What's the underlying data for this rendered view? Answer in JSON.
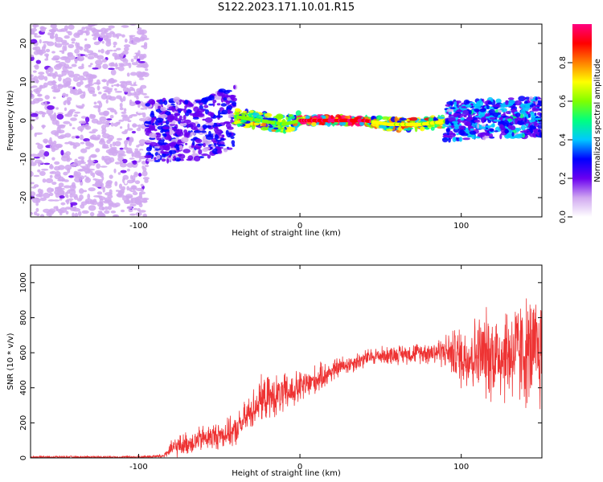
{
  "title": "S122.2023.171.10.01.R15",
  "chart_data": [
    {
      "type": "heatmap",
      "xlabel": "Height of straight line (km)",
      "ylabel": "Frequency (Hz)",
      "xlim": [
        -167,
        150
      ],
      "ylim": [
        -25,
        25
      ],
      "x_ticks": [
        -100,
        0,
        100
      ],
      "y_ticks": [
        -20,
        -10,
        0,
        10,
        20
      ],
      "grid": false,
      "colorbar": {
        "label": "Normalized spectral amplitude",
        "range": [
          0,
          1
        ],
        "ticks": [
          0.0,
          0.2,
          0.4,
          0.6,
          0.8
        ],
        "colors": [
          "#ffffff",
          "#d0a8f0",
          "#6a00f0",
          "#0000ff",
          "#00c8ff",
          "#00ff80",
          "#80ff00",
          "#ffff00",
          "#ff8000",
          "#ff0000",
          "#ff0080"
        ]
      },
      "regions": [
        {
          "x_range": [
            -167,
            -95
          ],
          "freq_half_width": 25,
          "amplitude": 0.12,
          "description_level": "scattered"
        },
        {
          "x_range": [
            -95,
            -40
          ],
          "freq_half_width": 8,
          "amplitude": 0.25
        },
        {
          "x_range": [
            -40,
            0
          ],
          "freq_half_width": 2,
          "amplitude": 0.6
        },
        {
          "x_range": [
            0,
            45
          ],
          "freq_half_width": 1,
          "amplitude": 0.95
        },
        {
          "x_range": [
            45,
            90
          ],
          "freq_half_width": 1.5,
          "amplitude": 0.7
        },
        {
          "x_range": [
            90,
            150
          ],
          "freq_half_width": 5,
          "amplitude": 0.35
        }
      ],
      "ridge_center_hz": [
        {
          "x": -100,
          "y": -3
        },
        {
          "x": -60,
          "y": -2
        },
        {
          "x": -40,
          "y": 1
        },
        {
          "x": -25,
          "y": 0
        },
        {
          "x": -10,
          "y": -1
        },
        {
          "x": 0,
          "y": 0
        },
        {
          "x": 10,
          "y": 0
        },
        {
          "x": 40,
          "y": 0
        },
        {
          "x": 55,
          "y": -1
        },
        {
          "x": 75,
          "y": -1
        },
        {
          "x": 95,
          "y": 0
        },
        {
          "x": 150,
          "y": 1
        }
      ]
    },
    {
      "type": "line",
      "xlabel": "Height of straight line (km)",
      "ylabel": "SNR (10 * v/v)",
      "xlim": [
        -167,
        150
      ],
      "ylim": [
        0,
        1100
      ],
      "x_ticks": [
        -100,
        0,
        100
      ],
      "y_ticks": [
        0,
        200,
        400,
        600,
        800,
        1000
      ],
      "grid": false,
      "series": [
        {
          "color": "#ee3333",
          "points": [
            {
              "x": -167,
              "y": 5,
              "spread": 8
            },
            {
              "x": -100,
              "y": 5,
              "spread": 8
            },
            {
              "x": -85,
              "y": 10,
              "spread": 15
            },
            {
              "x": -78,
              "y": 60,
              "spread": 70
            },
            {
              "x": -60,
              "y": 110,
              "spread": 90
            },
            {
              "x": -40,
              "y": 150,
              "spread": 100
            },
            {
              "x": -25,
              "y": 330,
              "spread": 150
            },
            {
              "x": -10,
              "y": 360,
              "spread": 140
            },
            {
              "x": 5,
              "y": 420,
              "spread": 110
            },
            {
              "x": 25,
              "y": 520,
              "spread": 70
            },
            {
              "x": 45,
              "y": 580,
              "spread": 60
            },
            {
              "x": 75,
              "y": 600,
              "spread": 70
            },
            {
              "x": 90,
              "y": 610,
              "spread": 110
            },
            {
              "x": 100,
              "y": 580,
              "spread": 220
            },
            {
              "x": 115,
              "y": 590,
              "spread": 300
            },
            {
              "x": 130,
              "y": 600,
              "spread": 360
            },
            {
              "x": 150,
              "y": 600,
              "spread": 400
            }
          ]
        }
      ]
    }
  ]
}
